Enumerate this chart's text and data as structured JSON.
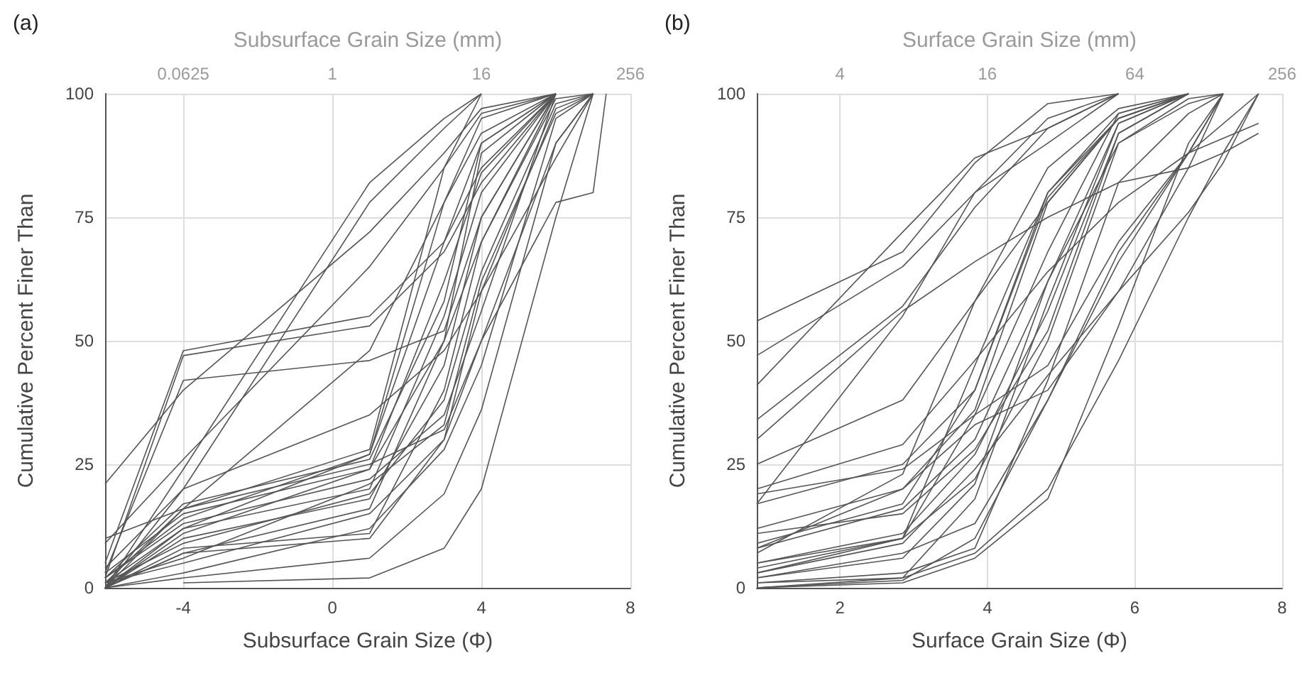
{
  "chart_data": [
    {
      "type": "line",
      "title": "(a)",
      "xlabel": "Subsurface Grain Size (Φ)",
      "x2label": "Subsurface Grain Size (mm)",
      "ylabel": "Cumulative Percent Finer Than",
      "xlim": [
        -6.1,
        8
      ],
      "xticks": [
        -4,
        0,
        4,
        8
      ],
      "x2lim": [
        0.0146,
        256
      ],
      "x2ticks": [
        0.0625,
        1,
        16,
        256
      ],
      "log": "x2",
      "ylim": [
        0,
        100
      ],
      "yticks": [
        0,
        25,
        50,
        75,
        100
      ],
      "grid": true,
      "marker": "none",
      "line_style": "solid",
      "series": [
        {
          "color": "#555555",
          "x": [
            -6.1,
            -4,
            1,
            3,
            4,
            6,
            7
          ],
          "values": [
            0,
            7,
            10,
            30,
            60,
            97,
            100
          ]
        },
        {
          "color": "#555555",
          "x": [
            -6.1,
            -4,
            1,
            3,
            4,
            6
          ],
          "values": [
            0,
            8,
            11,
            40,
            70,
            100
          ]
        },
        {
          "color": "#555555",
          "x": [
            -6.1,
            -4,
            1,
            3,
            4,
            6
          ],
          "values": [
            1,
            12,
            20,
            55,
            80,
            100
          ]
        },
        {
          "color": "#555555",
          "x": [
            -6.1,
            -4,
            1,
            3,
            4,
            6
          ],
          "values": [
            2,
            14,
            27,
            70,
            90,
            100
          ]
        },
        {
          "color": "#555555",
          "x": [
            -6.1,
            -4,
            1,
            3,
            4
          ],
          "values": [
            1,
            16,
            28,
            85,
            100
          ]
        },
        {
          "color": "#555555",
          "x": [
            -6.1,
            -4,
            1,
            3,
            4,
            6
          ],
          "values": [
            0,
            10,
            18,
            45,
            75,
            100
          ]
        },
        {
          "color": "#555555",
          "x": [
            -6.1,
            -4,
            1,
            3,
            4,
            6
          ],
          "values": [
            2,
            13,
            22,
            35,
            56,
            100
          ]
        },
        {
          "color": "#555555",
          "x": [
            -6.1,
            -4,
            1,
            3,
            4,
            6,
            7
          ],
          "values": [
            0,
            3,
            12,
            28,
            45,
            95,
            100
          ]
        },
        {
          "color": "#555555",
          "x": [
            -6.1,
            -4,
            1,
            3,
            4,
            6,
            7
          ],
          "values": [
            1,
            5,
            15,
            30,
            50,
            90,
            100
          ]
        },
        {
          "color": "#555555",
          "x": [
            -6.1,
            -4,
            1,
            3,
            4,
            6
          ],
          "values": [
            0,
            7,
            16,
            50,
            88,
            100
          ]
        },
        {
          "color": "#555555",
          "x": [
            -6.1,
            -4,
            1,
            3,
            4,
            6
          ],
          "values": [
            3,
            15,
            24,
            62,
            84,
            100
          ]
        },
        {
          "color": "#555555",
          "x": [
            -6.1,
            -4,
            1,
            3,
            4,
            6,
            7
          ],
          "values": [
            1,
            9,
            19,
            38,
            64,
            98,
            100
          ]
        },
        {
          "color": "#555555",
          "x": [
            -6.1,
            -4,
            1,
            3,
            4,
            6,
            7
          ],
          "values": [
            0,
            2,
            6,
            19,
            36,
            90,
            100
          ]
        },
        {
          "color": "#555555",
          "x": [
            -4,
            1,
            3,
            4,
            6,
            7
          ],
          "values": [
            1,
            2,
            8,
            20,
            75,
            100
          ]
        },
        {
          "color": "#555555",
          "x": [
            -6.1,
            -4,
            1,
            3,
            4,
            6
          ],
          "values": [
            5,
            48,
            55,
            70,
            85,
            100
          ]
        },
        {
          "color": "#555555",
          "x": [
            -6.1,
            -4,
            1,
            3,
            4,
            6
          ],
          "values": [
            2,
            47,
            53,
            68,
            82,
            100
          ]
        },
        {
          "color": "#555555",
          "x": [
            -6.1,
            -4,
            1,
            3,
            4,
            6
          ],
          "values": [
            3,
            42,
            46,
            52,
            75,
            100
          ]
        },
        {
          "color": "#555555",
          "x": [
            -6.1,
            -4,
            1,
            3,
            4
          ],
          "values": [
            0,
            20,
            78,
            93,
            100
          ]
        },
        {
          "color": "#555555",
          "x": [
            -6.1,
            -4,
            1,
            3,
            4
          ],
          "values": [
            0,
            24,
            82,
            95,
            100
          ]
        },
        {
          "color": "#555555",
          "x": [
            -6.1,
            -4,
            1,
            3,
            4,
            6
          ],
          "values": [
            21,
            40,
            72,
            88,
            97,
            100
          ]
        },
        {
          "color": "#555555",
          "x": [
            -6.1,
            -4,
            1,
            3,
            4,
            6
          ],
          "values": [
            9,
            26,
            65,
            85,
            96,
            100
          ]
        },
        {
          "color": "#555555",
          "x": [
            -6.1,
            -4,
            1,
            3,
            4,
            6,
            7
          ],
          "values": [
            4,
            20,
            35,
            48,
            60,
            87,
            100
          ]
        },
        {
          "color": "#555555",
          "x": [
            -6.1,
            -4,
            1,
            3,
            4,
            6
          ],
          "values": [
            0,
            16,
            48,
            78,
            95,
            100
          ]
        },
        {
          "color": "#555555",
          "x": [
            -6.1,
            -4,
            1,
            3,
            4,
            6,
            7,
            7.35
          ],
          "values": [
            10,
            16,
            25,
            32,
            50,
            78,
            80,
            100
          ]
        },
        {
          "color": "#555555",
          "x": [
            -6.1,
            -4,
            1,
            3,
            4,
            6
          ],
          "values": [
            0,
            12,
            27,
            78,
            92,
            100
          ]
        },
        {
          "color": "#555555",
          "x": [
            -6.1,
            -4,
            1,
            3,
            4,
            6,
            7
          ],
          "values": [
            1,
            6,
            21,
            33,
            62,
            96,
            100
          ]
        },
        {
          "color": "#555555",
          "x": [
            -6.1,
            -4,
            1,
            3,
            4,
            6,
            7
          ],
          "values": [
            0,
            11,
            24,
            50,
            70,
            99,
            100
          ]
        },
        {
          "color": "#555555",
          "x": [
            -6.1,
            -4,
            1,
            3,
            4,
            6
          ],
          "values": [
            2,
            17,
            26,
            58,
            90,
            100
          ]
        }
      ]
    },
    {
      "type": "line",
      "title": "(b)",
      "xlabel": "Surface Grain Size (Φ)",
      "x2label": "Surface Grain Size (mm)",
      "ylabel": "Cumulative Percent Finer Than",
      "xlim": [
        0.87,
        8
      ],
      "xticks": [
        2,
        4,
        6,
        8
      ],
      "x2lim": [
        1.83,
        256
      ],
      "x2ticks": [
        4,
        16,
        64,
        256
      ],
      "log": "x2",
      "ylim": [
        0,
        100
      ],
      "yticks": [
        0,
        25,
        50,
        75,
        100
      ],
      "grid": true,
      "marker": "none",
      "line_style": "solid",
      "series": [
        {
          "color": "#555555",
          "x": [
            0.87,
            2.85,
            3.83,
            4.82,
            5.78
          ],
          "values": [
            54,
            68,
            86,
            98,
            100
          ]
        },
        {
          "color": "#555555",
          "x": [
            0.87,
            2.85,
            3.83,
            4.82,
            5.78
          ],
          "values": [
            47,
            65,
            80,
            90,
            100
          ]
        },
        {
          "color": "#555555",
          "x": [
            0.87,
            2.85,
            3.83,
            4.82,
            5.78
          ],
          "values": [
            41,
            72,
            87,
            93,
            100
          ]
        },
        {
          "color": "#555555",
          "x": [
            0.87,
            2.85,
            3.83,
            4.82,
            5.78
          ],
          "values": [
            34,
            57,
            77,
            93,
            100
          ]
        },
        {
          "color": "#555555",
          "x": [
            0.87,
            2.85,
            3.83,
            4.82,
            5.78,
            6.73,
            7.2,
            7.68
          ],
          "values": [
            30,
            56,
            66,
            75,
            82,
            85,
            88,
            92
          ]
        },
        {
          "color": "#555555",
          "x": [
            0.87,
            2.85,
            3.83,
            4.82,
            5.78,
            6.73
          ],
          "values": [
            25,
            38,
            58,
            78,
            95,
            100
          ]
        },
        {
          "color": "#555555",
          "x": [
            0.87,
            2.85,
            3.83,
            4.82,
            5.78,
            6.73,
            7.68
          ],
          "values": [
            20,
            29,
            46,
            64,
            78,
            88,
            94
          ]
        },
        {
          "color": "#555555",
          "x": [
            0.87,
            2.85,
            3.83,
            4.82,
            5.78
          ],
          "values": [
            17,
            55,
            80,
            95,
            100
          ]
        },
        {
          "color": "#555555",
          "x": [
            0.87,
            2.85,
            3.83,
            4.82,
            5.78,
            6.73,
            7.68
          ],
          "values": [
            19,
            24,
            35,
            45,
            70,
            88,
            100
          ]
        },
        {
          "color": "#555555",
          "x": [
            0.87,
            2.85,
            3.83,
            4.82,
            5.78,
            6.73
          ],
          "values": [
            17,
            25,
            40,
            80,
            96,
            100
          ]
        },
        {
          "color": "#555555",
          "x": [
            0.87,
            2.85,
            3.83,
            4.82,
            5.78,
            6.73,
            7.2
          ],
          "values": [
            12,
            20,
            33,
            40,
            60,
            85,
            100
          ]
        },
        {
          "color": "#555555",
          "x": [
            0.87,
            2.85,
            3.83,
            4.82,
            5.78,
            6.73
          ],
          "values": [
            9,
            17,
            40,
            79,
            95,
            100
          ]
        },
        {
          "color": "#555555",
          "x": [
            0.87,
            2.85,
            3.83,
            4.82,
            5.78,
            6.73
          ],
          "values": [
            8,
            16,
            30,
            62,
            94,
            100
          ]
        },
        {
          "color": "#555555",
          "x": [
            0.87,
            2.85,
            3.83,
            4.82,
            5.78,
            6.73
          ],
          "values": [
            8,
            20,
            36,
            78,
            95,
            100
          ]
        },
        {
          "color": "#555555",
          "x": [
            0.87,
            2.85,
            3.83,
            4.82,
            5.78,
            6.73
          ],
          "values": [
            5,
            11,
            27,
            56,
            92,
            100
          ]
        },
        {
          "color": "#555555",
          "x": [
            0.87,
            2.85,
            3.83,
            4.82,
            5.78,
            6.73,
            7.2
          ],
          "values": [
            5,
            10,
            22,
            50,
            90,
            99,
            100
          ]
        },
        {
          "color": "#555555",
          "x": [
            0.87,
            2.85,
            3.83,
            4.82,
            5.78,
            6.73
          ],
          "values": [
            4,
            10,
            35,
            68,
            96,
            100
          ]
        },
        {
          "color": "#555555",
          "x": [
            0.87,
            2.85,
            3.83,
            4.82,
            5.78,
            6.73
          ],
          "values": [
            3,
            10,
            45,
            80,
            95,
            100
          ]
        },
        {
          "color": "#555555",
          "x": [
            0.87,
            2.85,
            3.83,
            4.82,
            5.78,
            6.73,
            7.2
          ],
          "values": [
            2,
            7,
            13,
            38,
            68,
            88,
            100
          ]
        },
        {
          "color": "#555555",
          "x": [
            0.87,
            2.85,
            3.83,
            4.82,
            5.78,
            6.73,
            7.2,
            7.68
          ],
          "values": [
            1,
            2,
            7,
            20,
            46,
            75,
            88,
            100
          ]
        },
        {
          "color": "#555555",
          "x": [
            0.87,
            2.85,
            3.83,
            4.82,
            5.78,
            6.73,
            7.2
          ],
          "values": [
            0,
            1.5,
            10,
            38,
            66,
            88,
            100
          ]
        },
        {
          "color": "#555555",
          "x": [
            0.87,
            2.85,
            3.83,
            4.82,
            5.78,
            6.73,
            7.2
          ],
          "values": [
            0,
            1,
            6,
            18,
            53,
            90,
            100
          ]
        },
        {
          "color": "#555555",
          "x": [
            0.87,
            2.85,
            3.83,
            4.82,
            5.78,
            6.73,
            7.2,
            7.68
          ],
          "values": [
            3,
            9,
            24,
            43,
            60,
            76,
            86,
            100
          ]
        },
        {
          "color": "#555555",
          "x": [
            0.87,
            2.85,
            3.83,
            4.82,
            5.78,
            6.73,
            7.2
          ],
          "values": [
            2,
            6,
            21,
            62,
            90,
            98,
            100
          ]
        },
        {
          "color": "#555555",
          "x": [
            0.87,
            2.85,
            3.83,
            4.82,
            5.78,
            6.73
          ],
          "values": [
            11,
            15,
            28,
            52,
            92,
            100
          ]
        },
        {
          "color": "#555555",
          "x": [
            0.87,
            2.85,
            3.83,
            4.82,
            5.78,
            6.73
          ],
          "values": [
            0,
            2,
            18,
            58,
            94,
            100
          ]
        },
        {
          "color": "#555555",
          "x": [
            0.87,
            2.85,
            3.83,
            4.82,
            5.78,
            6.73
          ],
          "values": [
            7,
            23,
            58,
            85,
            97,
            100
          ]
        },
        {
          "color": "#555555",
          "x": [
            0.87,
            2.85,
            3.83,
            4.82,
            5.78,
            6.73,
            7.2
          ],
          "values": [
            1,
            3,
            8,
            42,
            82,
            96,
            100
          ]
        }
      ]
    }
  ]
}
